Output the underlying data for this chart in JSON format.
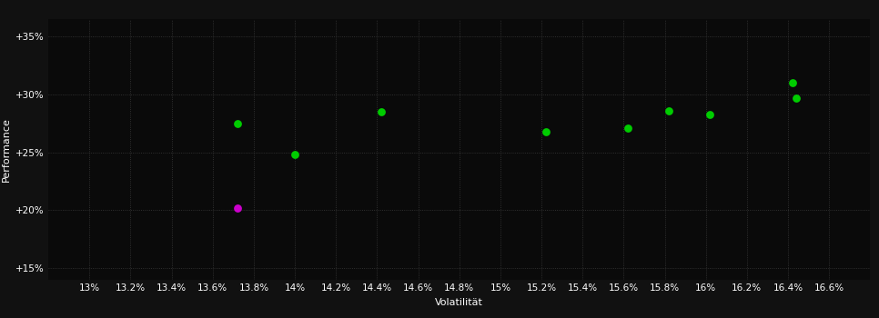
{
  "background_color": "#111111",
  "plot_bg_color": "#0a0a0a",
  "grid_color": "#3a3a3a",
  "text_color": "#ffffff",
  "xlabel": "Volatilität",
  "ylabel": "Performance",
  "xlim": [
    12.8,
    16.8
  ],
  "ylim": [
    14.0,
    36.5
  ],
  "xticks": [
    13.0,
    13.2,
    13.4,
    13.6,
    13.8,
    14.0,
    14.2,
    14.4,
    14.6,
    14.8,
    15.0,
    15.2,
    15.4,
    15.6,
    15.8,
    16.0,
    16.2,
    16.4,
    16.6
  ],
  "yticks": [
    15,
    20,
    25,
    30,
    35
  ],
  "green_points": [
    [
      13.72,
      27.5
    ],
    [
      14.0,
      24.8
    ],
    [
      14.42,
      28.5
    ],
    [
      15.22,
      26.8
    ],
    [
      15.62,
      27.1
    ],
    [
      15.82,
      28.6
    ],
    [
      16.02,
      28.3
    ],
    [
      16.42,
      31.0
    ],
    [
      16.44,
      29.7
    ]
  ],
  "magenta_points": [
    [
      13.72,
      20.2
    ]
  ],
  "green_color": "#00cc00",
  "magenta_color": "#cc00cc",
  "marker_size": 40,
  "axis_fontsize": 8,
  "tick_fontsize": 7.5
}
